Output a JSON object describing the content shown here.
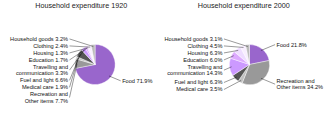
{
  "chart_data": [
    {
      "type": "pie",
      "title": "Household expenditure 1920",
      "categories": [
        "Food",
        "Recreation and\nOther items",
        "Medical care",
        "Fuel and light",
        "Travelling and\ncommunication",
        "Education",
        "Housing",
        "Clothing",
        "Household goods"
      ],
      "values": [
        71.9,
        7.7,
        1.9,
        6.6,
        3.3,
        1.7,
        1.3,
        2.4,
        3.2
      ],
      "value_labels": [
        "71.9%",
        "7.7%",
        "1.9%",
        "6.6%",
        "3.3%",
        "1.7%",
        "1.3%",
        "2.4%",
        "3.2%"
      ],
      "colors": [
        "#9966cc",
        "#999999",
        "#c0c0c0",
        "#555555",
        "#cc99ff",
        "#ddaaff",
        "#eeddff",
        "#f8eeff",
        "#bbbbbb"
      ],
      "data_labels": true
    },
    {
      "type": "pie",
      "title": "Household expenditure 2000",
      "categories": [
        "Food",
        "Recreation and\nOther items",
        "Medical care",
        "Fuel and light",
        "Travelling and\ncommunication",
        "Education",
        "Housing",
        "Clothing",
        "Household goods"
      ],
      "values": [
        21.8,
        34.2,
        3.5,
        6.3,
        14.3,
        6.0,
        6.3,
        4.5,
        3.1
      ],
      "value_labels": [
        "21.8%",
        "34.2%",
        "3.5%",
        "6.3%",
        "14.3%",
        "6.0%",
        "6.3%",
        "4.5%",
        "3.1%"
      ],
      "colors": [
        "#9966cc",
        "#999999",
        "#c0c0c0",
        "#555555",
        "#cc99ff",
        "#ddaaff",
        "#eeddff",
        "#f8eeff",
        "#bbbbbb"
      ],
      "data_labels": true
    }
  ]
}
